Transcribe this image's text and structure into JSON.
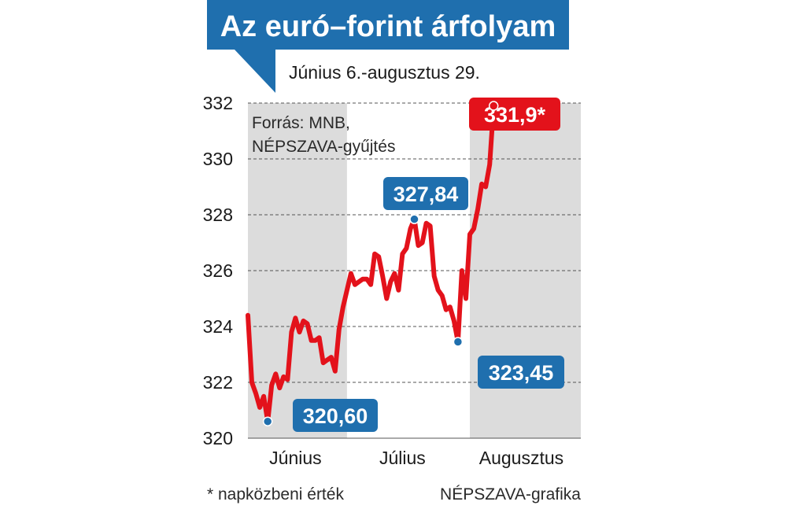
{
  "title": "Az euró–forint árfolyam",
  "subtitle": "Június 6.-augusztus 29.",
  "source": [
    "Forrás: MNB,",
    "NÉPSZAVA-gyűjtés"
  ],
  "footnote": "* napközbeni érték",
  "credit": "NÉPSZAVA-grafika",
  "colors": {
    "title_bg": "#1f6fae",
    "line": "#e3121b",
    "callout_blue": "#1f6fae",
    "callout_red": "#e3121b",
    "shade": "#dcdcdc",
    "grid": "#555555"
  },
  "chart_data": {
    "type": "line",
    "title": "Az euró–forint árfolyam",
    "subtitle": "Június 6.-augusztus 29.",
    "ylim": [
      320,
      332
    ],
    "yticks": [
      320,
      322,
      324,
      326,
      328,
      330,
      332
    ],
    "ytick_labels": [
      "320",
      "322",
      "324",
      "326",
      "328",
      "330",
      "332"
    ],
    "grid": "horizontal dashed",
    "x_start": "06-06",
    "x_end": "08-29",
    "shaded_months": [
      "06",
      "08"
    ],
    "month_labels": [
      {
        "label": "Június",
        "at": "06-18"
      },
      {
        "label": "Július",
        "at": "07-15"
      },
      {
        "label": "Augusztus",
        "at": "08-14"
      }
    ],
    "series": [
      {
        "values": [
          [
            "06-06",
            324.4
          ],
          [
            "06-07",
            322.0
          ],
          [
            "06-08",
            321.6
          ],
          [
            "06-09",
            321.1
          ],
          [
            "06-10",
            321.5
          ],
          [
            "06-11",
            320.6
          ],
          [
            "06-12",
            321.9
          ],
          [
            "06-13",
            322.3
          ],
          [
            "06-14",
            321.8
          ],
          [
            "06-15",
            322.2
          ],
          [
            "06-16",
            322.1
          ],
          [
            "06-17",
            323.8
          ],
          [
            "06-18",
            324.3
          ],
          [
            "06-19",
            323.8
          ],
          [
            "06-20",
            324.2
          ],
          [
            "06-21",
            324.1
          ],
          [
            "06-22",
            323.5
          ],
          [
            "06-23",
            323.5
          ],
          [
            "06-24",
            323.6
          ],
          [
            "06-25",
            322.7
          ],
          [
            "06-26",
            322.8
          ],
          [
            "06-27",
            322.9
          ],
          [
            "06-28",
            322.4
          ],
          [
            "06-29",
            323.9
          ],
          [
            "06-30",
            324.7
          ],
          [
            "07-01",
            325.3
          ],
          [
            "07-02",
            325.9
          ],
          [
            "07-03",
            325.5
          ],
          [
            "07-04",
            325.6
          ],
          [
            "07-05",
            325.7
          ],
          [
            "07-06",
            325.7
          ],
          [
            "07-07",
            325.5
          ],
          [
            "07-08",
            326.6
          ],
          [
            "07-09",
            326.5
          ],
          [
            "07-10",
            325.8
          ],
          [
            "07-11",
            325.0
          ],
          [
            "07-12",
            325.6
          ],
          [
            "07-13",
            325.9
          ],
          [
            "07-14",
            325.3
          ],
          [
            "07-15",
            326.6
          ],
          [
            "07-16",
            326.8
          ],
          [
            "07-17",
            327.5
          ],
          [
            "07-18",
            327.84
          ],
          [
            "07-19",
            326.9
          ],
          [
            "07-20",
            327.0
          ],
          [
            "07-21",
            327.7
          ],
          [
            "07-22",
            327.6
          ],
          [
            "07-23",
            325.8
          ],
          [
            "07-24",
            325.3
          ],
          [
            "07-25",
            325.1
          ],
          [
            "07-26",
            324.6
          ],
          [
            "07-27",
            324.7
          ],
          [
            "07-28",
            324.2
          ],
          [
            "07-29",
            323.45
          ],
          [
            "07-30",
            326.0
          ],
          [
            "07-31",
            325.0
          ],
          [
            "08-01",
            327.3
          ],
          [
            "08-02",
            327.5
          ],
          [
            "08-03",
            328.2
          ],
          [
            "08-04",
            329.1
          ],
          [
            "08-05",
            329.0
          ],
          [
            "08-06",
            329.8
          ],
          [
            "08-07",
            331.9
          ]
        ]
      }
    ],
    "callouts": [
      {
        "label": "320,60",
        "x": "06-11",
        "y": 320.6,
        "color": "blue"
      },
      {
        "label": "327,84",
        "x": "07-18",
        "y": 327.84,
        "color": "blue"
      },
      {
        "label": "323,45",
        "x": "07-29",
        "y": 323.45,
        "color": "blue"
      },
      {
        "label": "331,9*",
        "x": "08-07",
        "y": 331.9,
        "color": "red"
      }
    ]
  }
}
